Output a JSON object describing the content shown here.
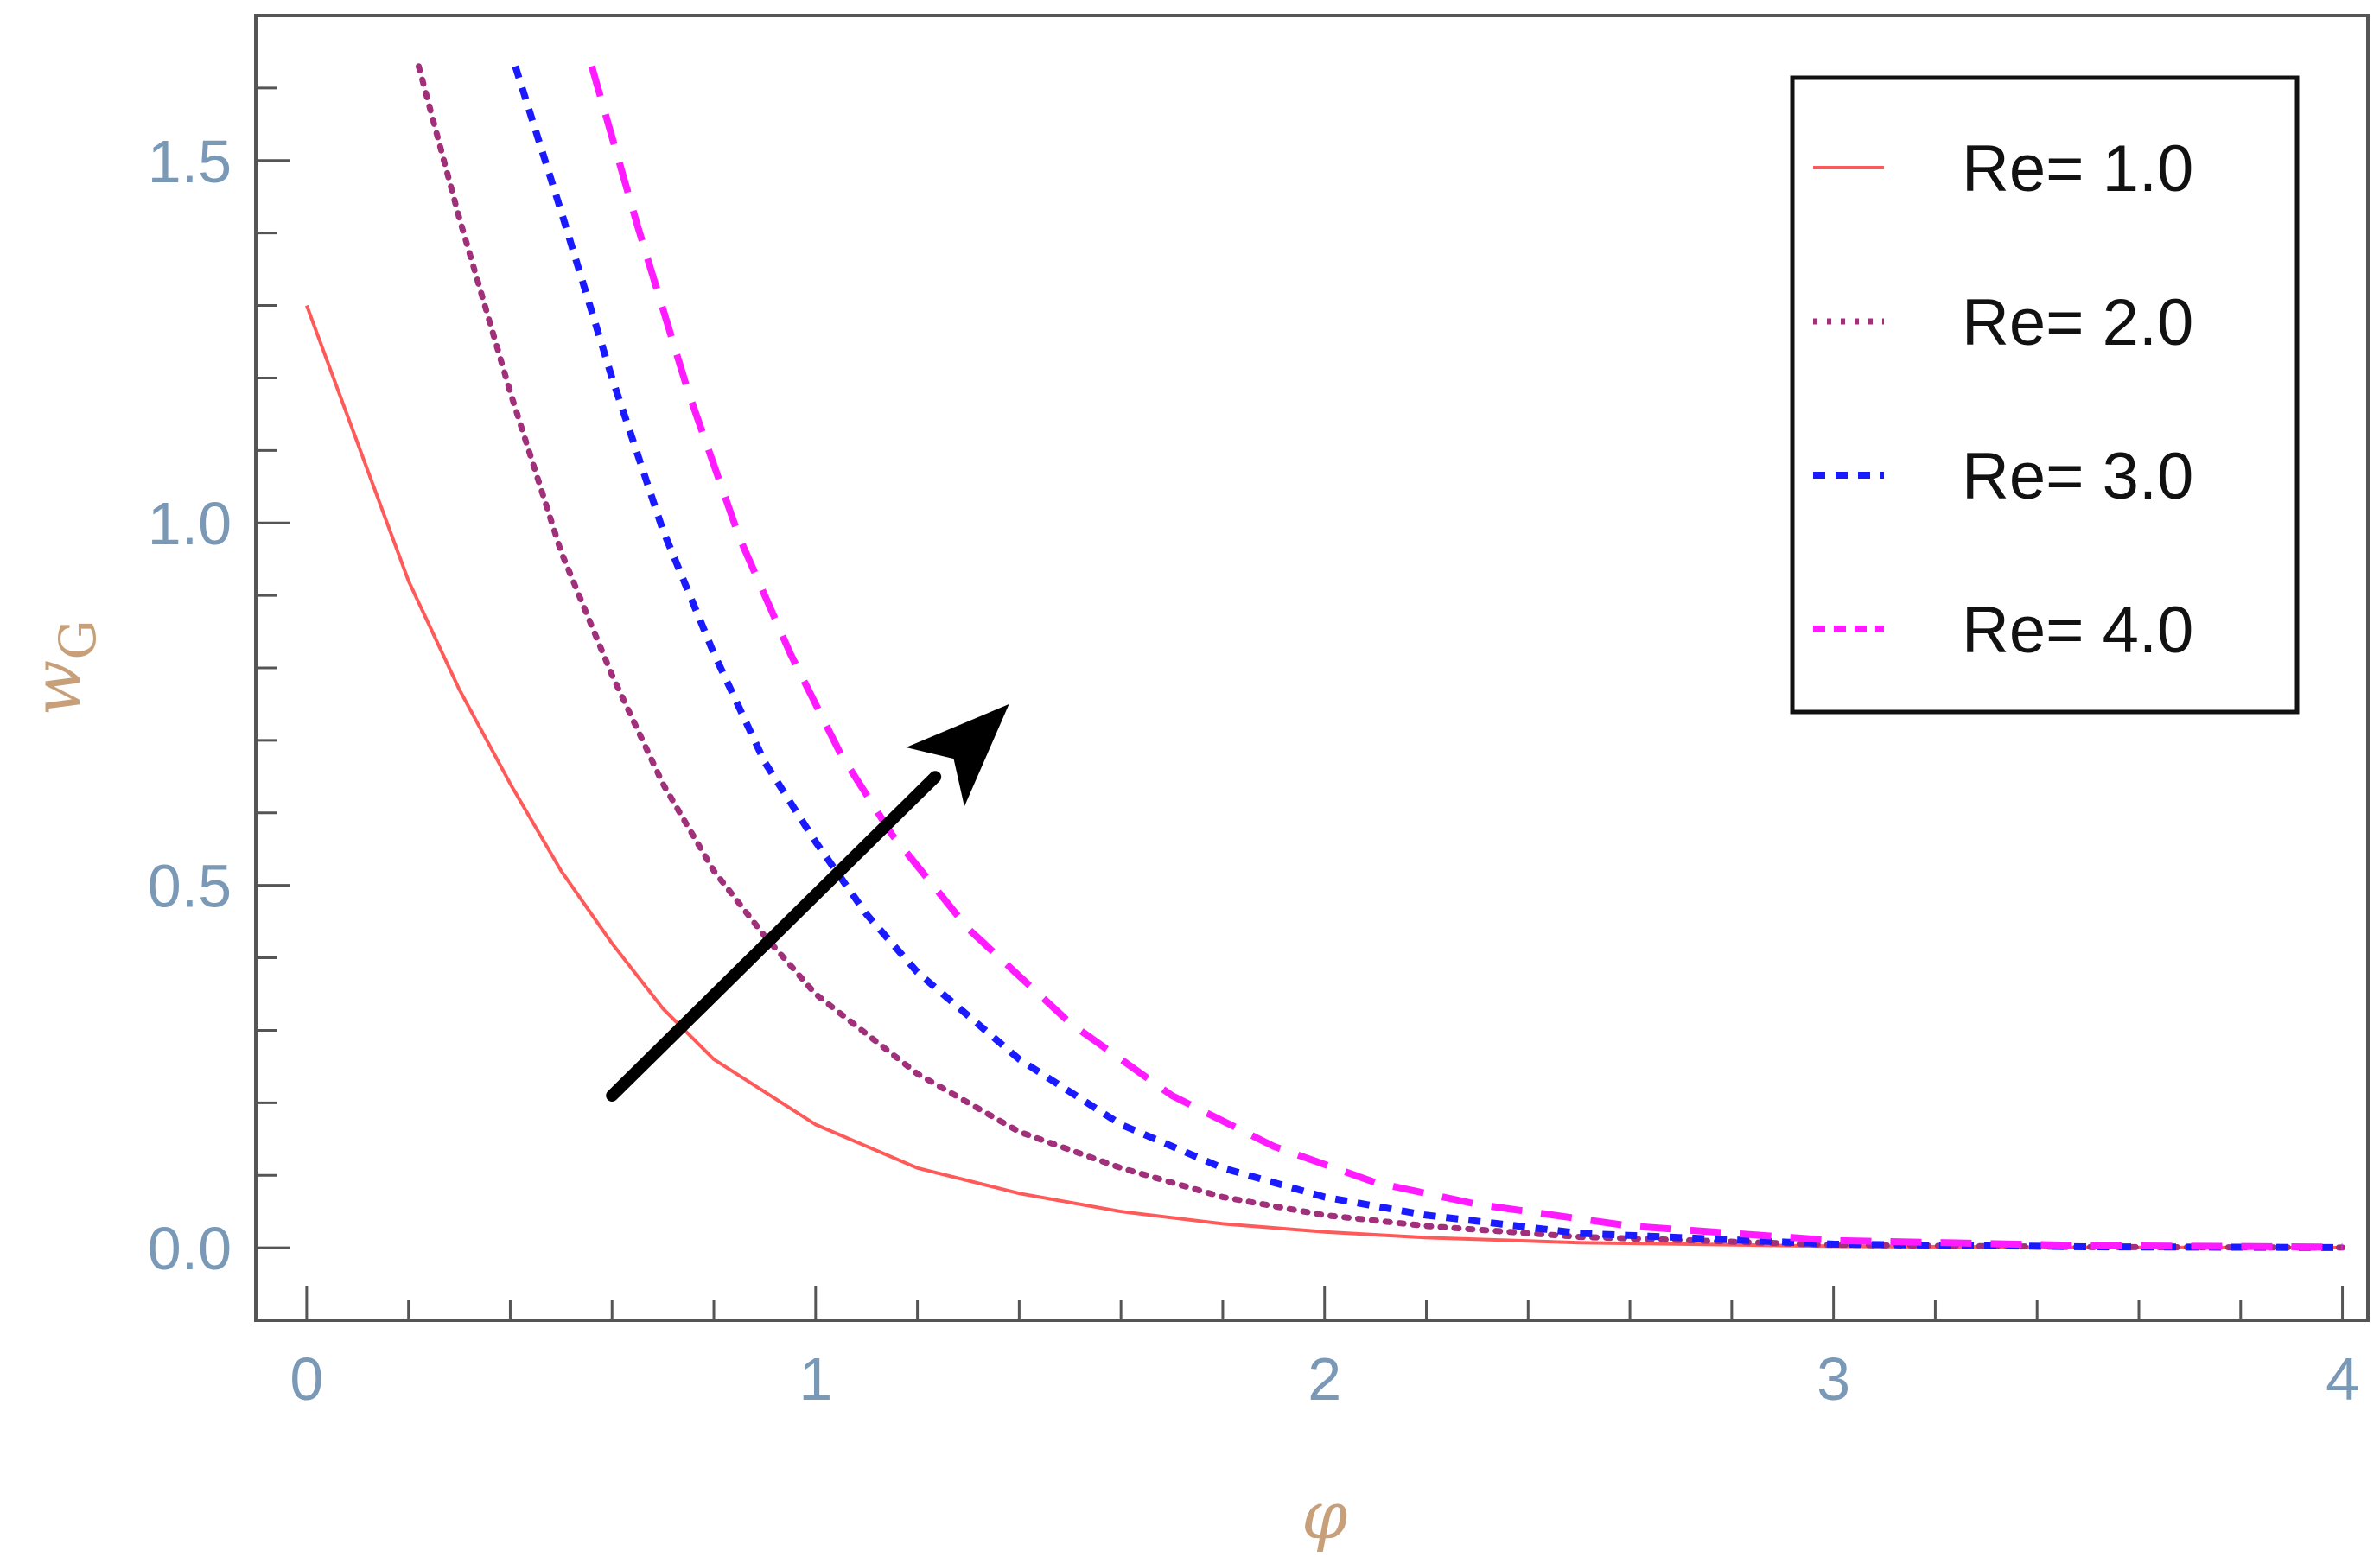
{
  "chart_data": {
    "type": "line",
    "title": "",
    "xlabel": "φ",
    "ylabel": "w_G",
    "xlim": [
      -0.1,
      4.05
    ],
    "ylim": [
      -0.1,
      1.7
    ],
    "x_ticks": [
      "0",
      "1",
      "2",
      "3",
      "4"
    ],
    "y_ticks": [
      "0.0",
      "0.5",
      "1.0",
      "1.5"
    ],
    "legend_position": "top-right",
    "grid": false,
    "series": [
      {
        "name": "Re= 1.0",
        "color": "#ff5a5a",
        "style": "solid",
        "x": [
          0.0,
          0.1,
          0.2,
          0.3,
          0.4,
          0.5,
          0.6,
          0.7,
          0.8,
          1.0,
          1.2,
          1.4,
          1.6,
          1.8,
          2.0,
          2.2,
          2.5,
          3.0,
          3.5,
          4.0
        ],
        "y": [
          1.3,
          1.11,
          0.92,
          0.77,
          0.64,
          0.52,
          0.42,
          0.33,
          0.26,
          0.17,
          0.11,
          0.075,
          0.05,
          0.033,
          0.022,
          0.014,
          0.007,
          0.002,
          0.0005,
          0.0001
        ]
      },
      {
        "name": "Re= 2.0",
        "color": "#a0307a",
        "style": "dotted",
        "x": [
          0.22,
          0.3,
          0.4,
          0.5,
          0.6,
          0.7,
          0.8,
          0.9,
          1.0,
          1.2,
          1.4,
          1.6,
          1.8,
          2.0,
          2.2,
          2.5,
          3.0,
          3.5,
          4.0
        ],
        "y": [
          1.63,
          1.42,
          1.18,
          0.96,
          0.79,
          0.64,
          0.52,
          0.43,
          0.35,
          0.24,
          0.16,
          0.11,
          0.07,
          0.045,
          0.03,
          0.015,
          0.004,
          0.001,
          0.0003
        ]
      },
      {
        "name": "Re= 3.0",
        "color": "#1a1aff",
        "style": "dashed",
        "x": [
          0.41,
          0.5,
          0.6,
          0.7,
          0.8,
          0.9,
          1.0,
          1.1,
          1.2,
          1.4,
          1.6,
          1.8,
          2.0,
          2.2,
          2.5,
          3.0,
          3.5,
          4.0
        ],
        "y": [
          1.63,
          1.43,
          1.2,
          0.99,
          0.82,
          0.67,
          0.56,
          0.46,
          0.38,
          0.26,
          0.17,
          0.11,
          0.07,
          0.045,
          0.02,
          0.005,
          0.0013,
          0.0003
        ]
      },
      {
        "name": "Re= 4.0",
        "color": "#ff1aff",
        "style": "long-dashed",
        "x": [
          0.56,
          0.65,
          0.75,
          0.85,
          0.95,
          1.05,
          1.15,
          1.3,
          1.5,
          1.7,
          1.9,
          2.1,
          2.3,
          2.6,
          3.0,
          3.5,
          4.0
        ],
        "y": [
          1.63,
          1.41,
          1.18,
          0.98,
          0.82,
          0.68,
          0.57,
          0.44,
          0.31,
          0.21,
          0.14,
          0.09,
          0.06,
          0.03,
          0.01,
          0.003,
          0.0008
        ]
      }
    ],
    "annotation": {
      "type": "arrow",
      "color": "#000000",
      "from": [
        0.6,
        0.21
      ],
      "to": [
        1.38,
        0.75
      ],
      "meaning": "increasing Re"
    }
  }
}
